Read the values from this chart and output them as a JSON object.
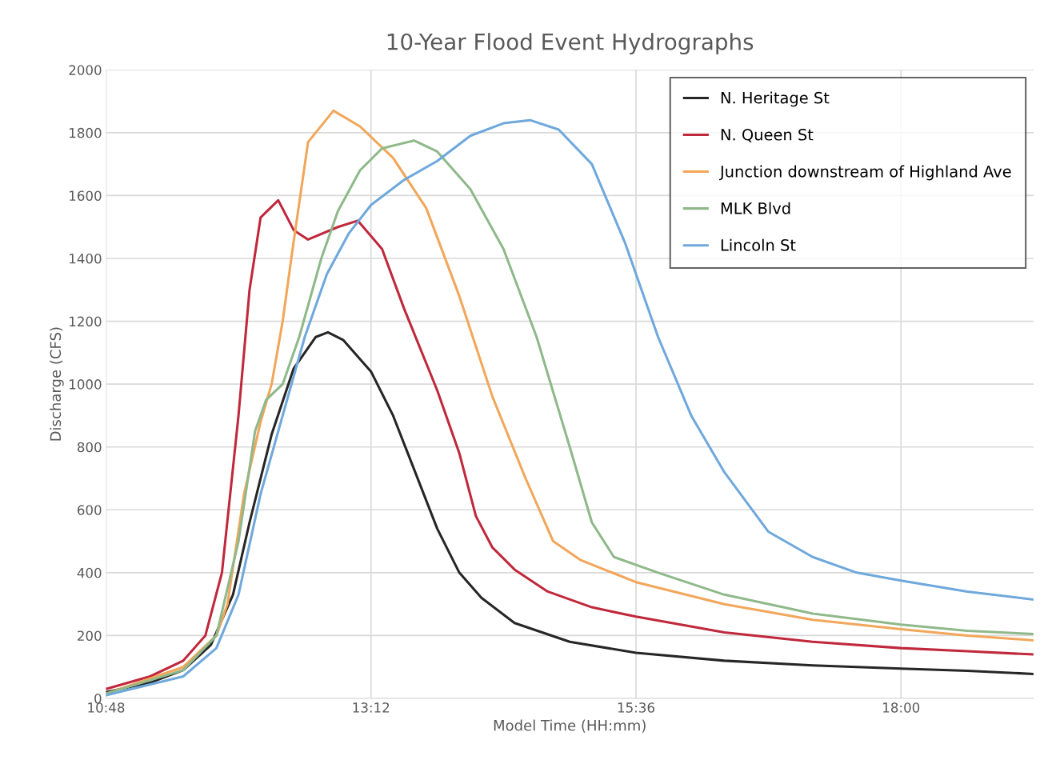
{
  "chart_data": {
    "type": "line",
    "title": "10-Year Flood Event Hydrographs",
    "xlabel": "Model Time (HH:mm)",
    "ylabel": "Discharge (CFS)",
    "xlim": [
      10.8,
      19.2
    ],
    "xticks": [
      {
        "value": 10.8,
        "label": "10:48"
      },
      {
        "value": 13.2,
        "label": "13:12"
      },
      {
        "value": 15.6,
        "label": "15:36"
      },
      {
        "value": 18.0,
        "label": "18:00"
      }
    ],
    "ylim": [
      0,
      2000
    ],
    "yticks": [
      0,
      200,
      400,
      600,
      800,
      1000,
      1200,
      1400,
      1600,
      1800,
      2000
    ],
    "grid": true,
    "legend": "top right",
    "marker": "none",
    "line_style": "solid",
    "series": [
      {
        "name": "N. Heritage St",
        "color": "#262626",
        "x": [
          10.8,
          11.2,
          11.5,
          11.75,
          11.95,
          12.1,
          12.3,
          12.5,
          12.7,
          12.81,
          12.95,
          13.2,
          13.4,
          13.6,
          13.8,
          14.0,
          14.2,
          14.5,
          15.0,
          15.6,
          16.4,
          17.2,
          18.0,
          18.6,
          19.19
        ],
        "values": [
          20,
          50,
          90,
          170,
          330,
          560,
          840,
          1050,
          1150,
          1165,
          1140,
          1040,
          900,
          720,
          540,
          400,
          320,
          240,
          180,
          145,
          120,
          105,
          95,
          88,
          78
        ]
      },
      {
        "name": "N. Queen St",
        "color": "#c0283c",
        "x": [
          10.8,
          11.2,
          11.5,
          11.7,
          11.85,
          12.0,
          12.1,
          12.2,
          12.36,
          12.5,
          12.63,
          12.9,
          13.08,
          13.3,
          13.5,
          13.8,
          14.0,
          14.15,
          14.3,
          14.5,
          14.8,
          15.2,
          15.6,
          16.4,
          17.2,
          18.0,
          18.6,
          19.19
        ],
        "values": [
          30,
          70,
          120,
          200,
          400,
          900,
          1300,
          1530,
          1585,
          1490,
          1460,
          1500,
          1520,
          1430,
          1240,
          980,
          780,
          580,
          480,
          410,
          340,
          290,
          260,
          210,
          180,
          160,
          150,
          140
        ]
      },
      {
        "name": "Junction downstream of Highland Ave",
        "color": "#f2a65a",
        "x": [
          10.8,
          11.5,
          11.8,
          11.9,
          12.05,
          12.2,
          12.3,
          12.4,
          12.49,
          12.63,
          12.86,
          13.1,
          13.4,
          13.7,
          14.0,
          14.3,
          14.6,
          14.85,
          15.1,
          15.6,
          16.4,
          17.2,
          18.0,
          18.6,
          19.19
        ],
        "values": [
          15,
          100,
          200,
          300,
          650,
          880,
          1000,
          1200,
          1430,
          1770,
          1870,
          1820,
          1720,
          1560,
          1280,
          960,
          700,
          500,
          440,
          370,
          300,
          250,
          220,
          200,
          185
        ]
      },
      {
        "name": "MLK Blvd",
        "color": "#8fb98a",
        "x": [
          10.8,
          11.5,
          11.8,
          12.0,
          12.15,
          12.25,
          12.4,
          12.55,
          12.75,
          12.9,
          13.1,
          13.3,
          13.59,
          13.8,
          14.1,
          14.4,
          14.7,
          15.0,
          15.2,
          15.4,
          15.8,
          16.4,
          17.2,
          18.0,
          18.6,
          19.19
        ],
        "values": [
          15,
          90,
          200,
          500,
          850,
          950,
          1000,
          1150,
          1400,
          1550,
          1680,
          1750,
          1775,
          1740,
          1620,
          1430,
          1150,
          800,
          560,
          450,
          400,
          330,
          270,
          235,
          215,
          205
        ]
      },
      {
        "name": "Lincoln St",
        "color": "#6fa8dc",
        "x": [
          10.8,
          11.5,
          11.8,
          12.0,
          12.2,
          12.4,
          12.6,
          12.8,
          13.0,
          13.2,
          13.5,
          13.8,
          14.1,
          14.4,
          14.64,
          14.9,
          15.2,
          15.5,
          15.8,
          16.1,
          16.4,
          16.8,
          17.2,
          17.6,
          18.0,
          18.6,
          19.19
        ],
        "values": [
          10,
          70,
          160,
          330,
          650,
          900,
          1150,
          1350,
          1480,
          1570,
          1650,
          1710,
          1790,
          1830,
          1840,
          1810,
          1700,
          1450,
          1150,
          900,
          720,
          530,
          450,
          400,
          375,
          340,
          315
        ]
      }
    ]
  }
}
